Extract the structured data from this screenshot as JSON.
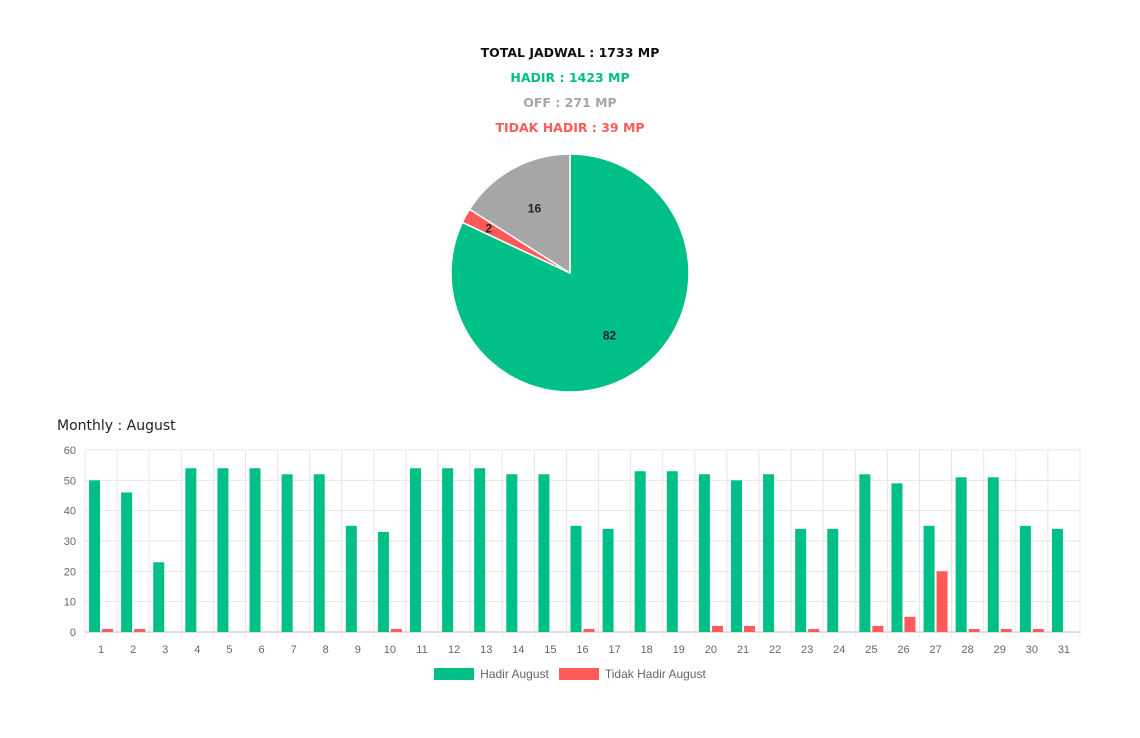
{
  "summary": {
    "total": "TOTAL JADWAL : 1733 MP",
    "hadir": "HADIR : 1423 MP",
    "off": "OFF : 271 MP",
    "tidak_hadir": "TIDAK HADIR : 39 MP"
  },
  "colors": {
    "total": "#111111",
    "hadir": "#00bf87",
    "off": "#a6a6a6",
    "tidak_hadir": "#ff5a5a"
  },
  "monthly_title": "Monthly : August",
  "chart_data": [
    {
      "type": "pie",
      "title": "",
      "slices": [
        {
          "label": "Hadir",
          "value": 82,
          "color": "#00bf87"
        },
        {
          "label": "Tidak Hadir",
          "value": 2,
          "color": "#ff5a5a"
        },
        {
          "label": "Off",
          "value": 16,
          "color": "#a6a6a6"
        }
      ],
      "data_labels": [
        "82",
        "2",
        "16"
      ]
    },
    {
      "type": "bar",
      "title": "",
      "xlabel": "",
      "ylabel": "",
      "ylim": [
        0,
        60
      ],
      "yticks": [
        0,
        10,
        20,
        30,
        40,
        50,
        60
      ],
      "grid": true,
      "legend_position": "bottom",
      "categories": [
        "1",
        "2",
        "3",
        "4",
        "5",
        "6",
        "7",
        "8",
        "9",
        "10",
        "11",
        "12",
        "13",
        "14",
        "15",
        "16",
        "17",
        "18",
        "19",
        "20",
        "21",
        "22",
        "23",
        "24",
        "25",
        "26",
        "27",
        "28",
        "29",
        "30",
        "31"
      ],
      "series": [
        {
          "name": "Hadir August",
          "color": "#00bf87",
          "values": [
            50,
            46,
            23,
            54,
            54,
            54,
            52,
            52,
            35,
            33,
            54,
            54,
            54,
            52,
            52,
            35,
            34,
            53,
            53,
            52,
            50,
            52,
            34,
            34,
            52,
            49,
            35,
            51,
            51,
            35,
            34
          ]
        },
        {
          "name": "Tidak Hadir August",
          "color": "#ff5a5a",
          "values": [
            1,
            1,
            0,
            0,
            0,
            0,
            0,
            0,
            0,
            1,
            0,
            0,
            0,
            0,
            0,
            1,
            0,
            0,
            0,
            2,
            2,
            0,
            1,
            0,
            2,
            5,
            20,
            1,
            1,
            1,
            0
          ]
        }
      ]
    }
  ]
}
